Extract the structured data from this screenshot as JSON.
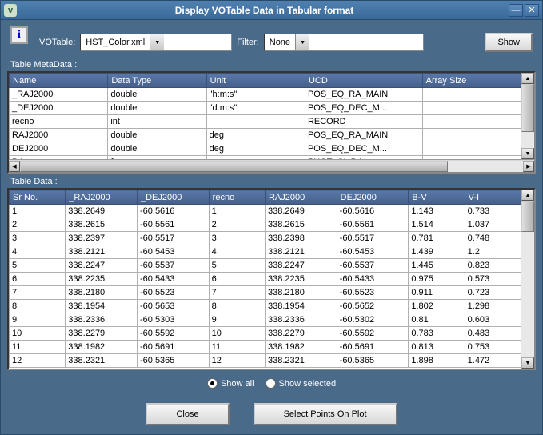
{
  "window": {
    "title": "Display VOTable Data in Tabular format",
    "icon_letter": "v"
  },
  "info_button_letter": "i",
  "filters": {
    "votable_label": "VOTable:",
    "votable_value": "HST_Color.xml",
    "filter_label": "Filter:",
    "filter_value": "None",
    "show_button": "Show"
  },
  "metadata": {
    "label": "Table MetaData :",
    "columns": [
      "Name",
      "Data Type",
      "Unit",
      "UCD",
      "Array Size"
    ],
    "rows": [
      [
        "_RAJ2000",
        "double",
        "\"h:m:s\"",
        "POS_EQ_RA_MAIN",
        ""
      ],
      [
        "_DEJ2000",
        "double",
        "\"d:m:s\"",
        "POS_EQ_DEC_M...",
        ""
      ],
      [
        "recno",
        "int",
        "",
        "RECORD",
        ""
      ],
      [
        "RAJ2000",
        "double",
        "deg",
        "POS_EQ_RA_MAIN",
        ""
      ],
      [
        "DEJ2000",
        "double",
        "deg",
        "POS_EQ_DEC_M...",
        ""
      ],
      [
        "B-V",
        "float",
        "mag",
        "PHOT_CI_B-V",
        ""
      ]
    ]
  },
  "tabledata": {
    "label": "Table Data :",
    "columns": [
      "Sr No.",
      "_RAJ2000",
      "_DEJ2000",
      "recno",
      "RAJ2000",
      "DEJ2000",
      "B-V",
      "V-I"
    ],
    "rows": [
      [
        "1",
        "338.2649",
        "-60.5616",
        "1",
        "338.2649",
        "-60.5616",
        "1.143",
        "0.733"
      ],
      [
        "2",
        "338.2615",
        "-60.5561",
        "2",
        "338.2615",
        "-60.5561",
        "1.514",
        "1.037"
      ],
      [
        "3",
        "338.2397",
        "-60.5517",
        "3",
        "338.2398",
        "-60.5517",
        "0.781",
        "0.748"
      ],
      [
        "4",
        "338.2121",
        "-60.5453",
        "4",
        "338.2121",
        "-60.5453",
        "1.439",
        "1.2"
      ],
      [
        "5",
        "338.2247",
        "-60.5537",
        "5",
        "338.2247",
        "-60.5537",
        "1.445",
        "0.823"
      ],
      [
        "6",
        "338.2235",
        "-60.5433",
        "6",
        "338.2235",
        "-60.5433",
        "0.975",
        "0.573"
      ],
      [
        "7",
        "338.2180",
        "-60.5523",
        "7",
        "338.2180",
        "-60.5523",
        "0.911",
        "0.723"
      ],
      [
        "8",
        "338.1954",
        "-60.5653",
        "8",
        "338.1954",
        "-60.5652",
        "1.802",
        "1.298"
      ],
      [
        "9",
        "338.2336",
        "-60.5303",
        "9",
        "338.2336",
        "-60.5302",
        "0.81",
        "0.603"
      ],
      [
        "10",
        "338.2279",
        "-60.5592",
        "10",
        "338.2279",
        "-60.5592",
        "0.783",
        "0.483"
      ],
      [
        "11",
        "338.1982",
        "-60.5691",
        "11",
        "338.1982",
        "-60.5691",
        "0.813",
        "0.753"
      ],
      [
        "12",
        "338.2321",
        "-60.5365",
        "12",
        "338.2321",
        "-60.5365",
        "1.898",
        "1.472"
      ]
    ]
  },
  "radios": {
    "show_all": "Show all",
    "show_selected": "Show selected",
    "selected": "show_all"
  },
  "buttons": {
    "close": "Close",
    "select_points": "Select Points On Plot"
  },
  "colors": {
    "header_bg": "#465f8a",
    "window_bg": "#4a6a8a",
    "titlebar": "#3a6a9a"
  },
  "col_widths": {
    "meta": [
      116,
      116,
      116,
      138,
      116
    ],
    "data": [
      58,
      74,
      74,
      58,
      74,
      74,
      58,
      58
    ]
  }
}
